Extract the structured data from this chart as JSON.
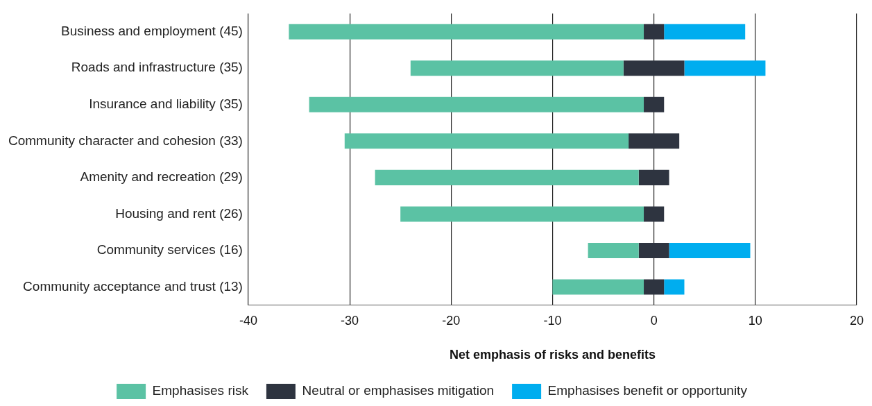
{
  "chart_data": {
    "type": "bar",
    "orientation": "horizontal",
    "xlabel": "Net emphasis of risks and benefits",
    "categories": [
      "Business and employment (45)",
      "Roads and infrastructure (35)",
      "Insurance and liability (35)",
      "Community character and cohesion (33)",
      "Amenity and recreation (29)",
      "Housing and rent (26)",
      "Community services (16)",
      "Community acceptance and trust (13)"
    ],
    "series": [
      {
        "name": "Emphasises risk",
        "color": "#5bc2a4",
        "values": [
          35,
          21,
          33,
          28,
          26,
          24,
          5,
          9
        ],
        "base": [
          -36,
          -24,
          -34,
          -30.5,
          -27.5,
          -25,
          -6.5,
          -10
        ]
      },
      {
        "name": "Neutral or emphasises mitigation",
        "color": "#2e3440",
        "values": [
          2,
          6,
          2,
          5,
          3,
          2,
          3,
          2
        ],
        "base": [
          -1,
          -3,
          -1,
          -2.5,
          -1.5,
          -1,
          -1.5,
          -1
        ]
      },
      {
        "name": "Emphasises benefit or opportunity",
        "color": "#00adef",
        "values": [
          8,
          8,
          null,
          null,
          null,
          null,
          8,
          2
        ],
        "base": [
          1,
          3,
          null,
          null,
          null,
          null,
          1.5,
          1
        ]
      }
    ],
    "xlim": [
      -40,
      20
    ],
    "xticks": [
      -40,
      -30,
      -20,
      -10,
      0,
      10,
      20
    ],
    "grid": "x",
    "legend": "bottom"
  }
}
